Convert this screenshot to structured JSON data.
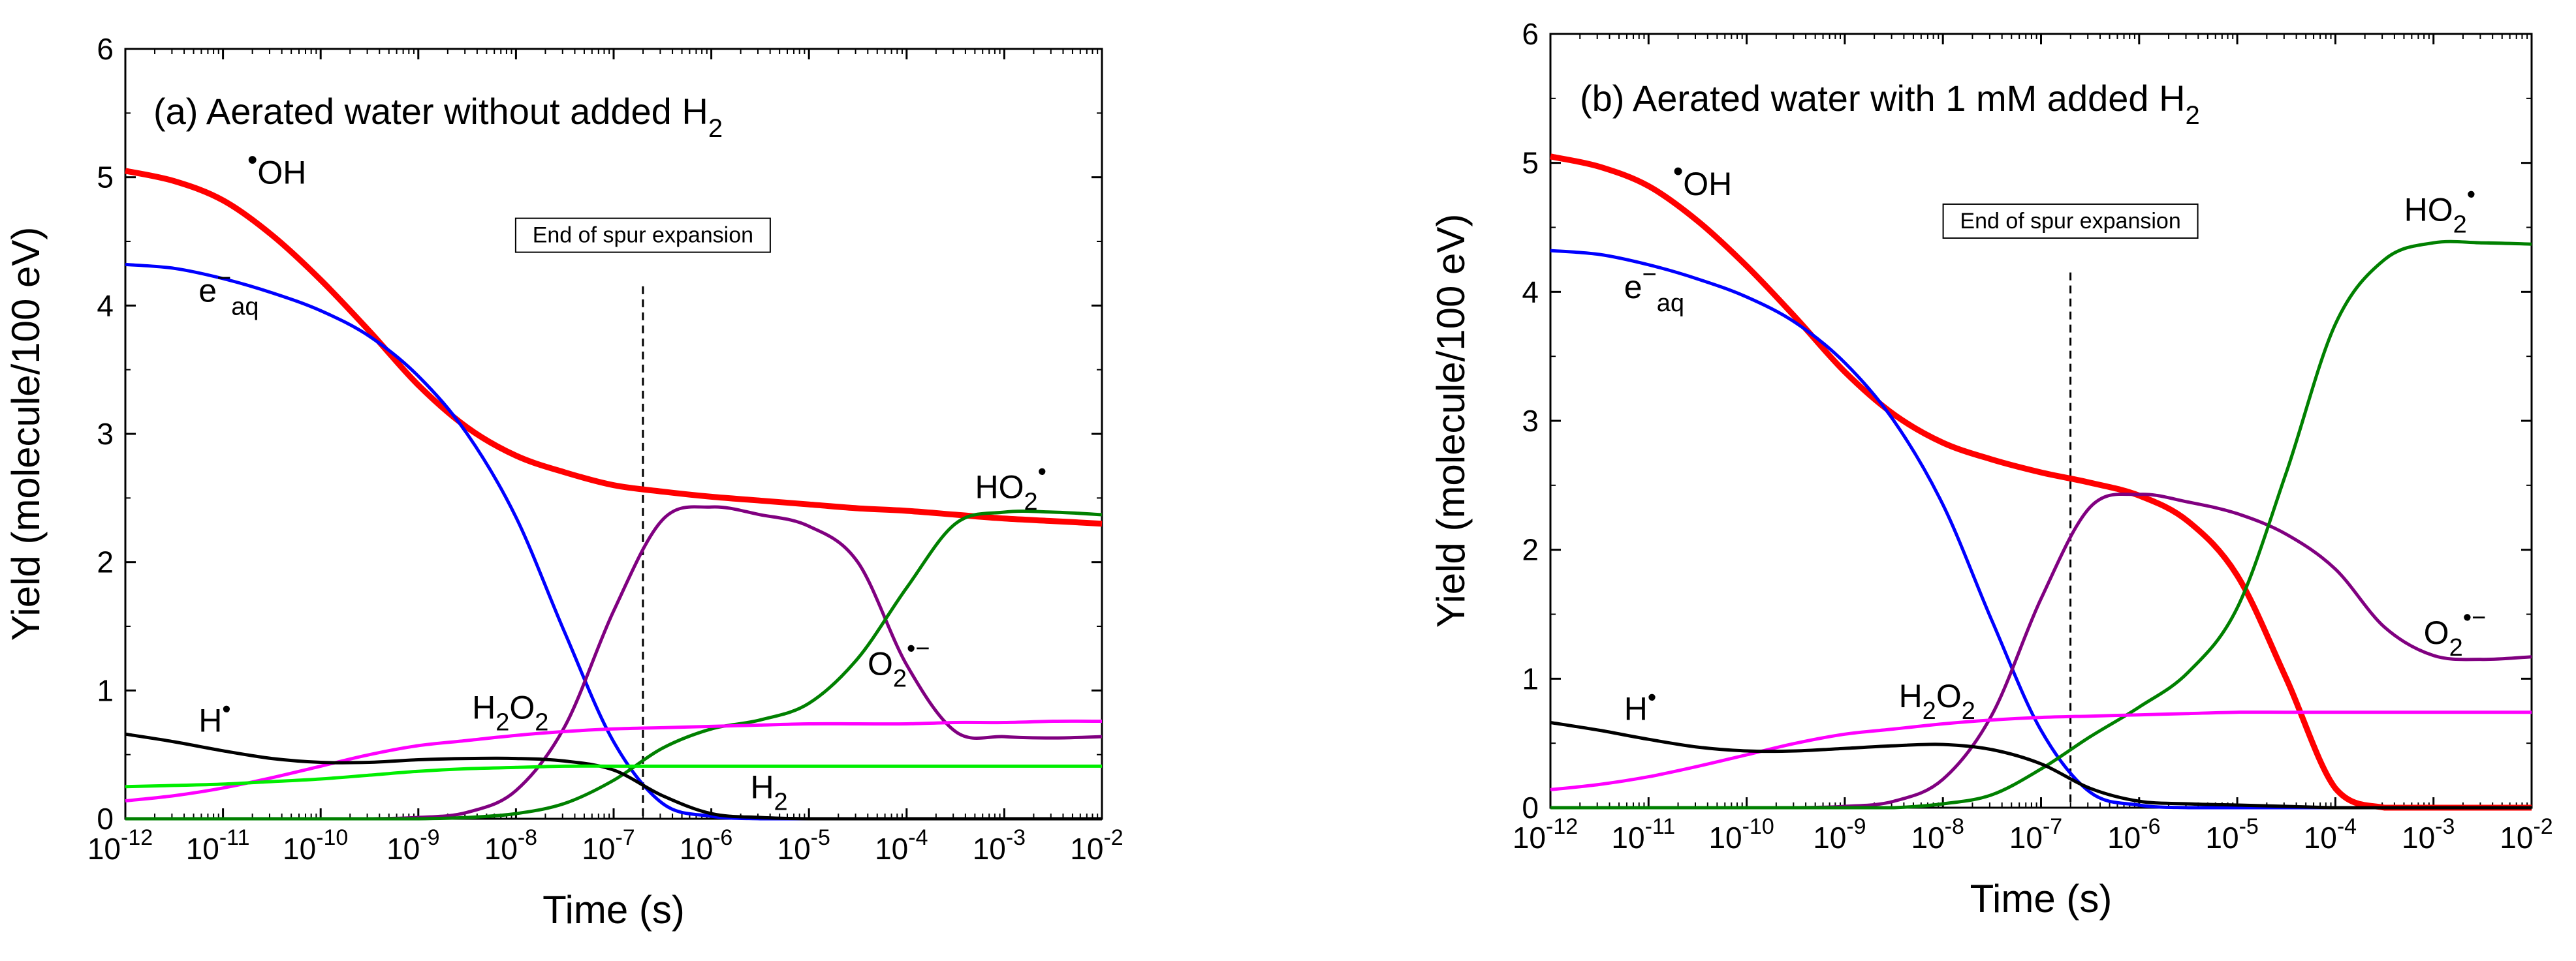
{
  "chart_data": [
    {
      "type": "line",
      "panel_label": "(a)",
      "title": "Aerated water without added H",
      "title_sub": "2",
      "xlabel": "Time (s)",
      "ylabel": "Yield (molecule/100 eV)",
      "xscale": "log",
      "xlim_log10": [
        -12,
        -2
      ],
      "ylim": [
        0,
        6
      ],
      "x_tick_labels": [
        "10",
        "10",
        "10",
        "10",
        "10",
        "10",
        "10",
        "10",
        "10",
        "10",
        "10"
      ],
      "x_tick_exponents": [
        "-12",
        "-11",
        "-10",
        "-9",
        "-8",
        "-7",
        "-6",
        "-5",
        "-4",
        "-3",
        "-2"
      ],
      "y_tick_labels": [
        "0",
        "1",
        "2",
        "3",
        "4",
        "5",
        "6"
      ],
      "annotation": {
        "text": "End of spur expansion",
        "x_log10": -6.7
      },
      "grid": false,
      "x_log10": [
        -12,
        -11.5,
        -11,
        -10.5,
        -10,
        -9.5,
        -9,
        -8.5,
        -8,
        -7.5,
        -7,
        -6.5,
        -6,
        -5.5,
        -5,
        -4.5,
        -4,
        -3.5,
        -3,
        -2.5,
        -2
      ],
      "series": [
        {
          "key": "OH",
          "color": "#ff0000",
          "label_pre": "•",
          "label_main": "OH",
          "label_x_log10": -10.75,
          "label_y": 4.95,
          "values": [
            5.05,
            4.97,
            4.82,
            4.55,
            4.2,
            3.8,
            3.38,
            3.05,
            2.83,
            2.7,
            2.6,
            2.55,
            2.51,
            2.48,
            2.45,
            2.42,
            2.4,
            2.37,
            2.34,
            2.32,
            2.3
          ]
        },
        {
          "key": "eaq",
          "color": "#0000ff",
          "label_main": "e",
          "label_sup": "−",
          "label_sub": "aq",
          "label_x_log10": -11.25,
          "label_y": 4.03,
          "values": [
            4.32,
            4.29,
            4.21,
            4.1,
            3.96,
            3.76,
            3.45,
            3.0,
            2.35,
            1.45,
            0.6,
            0.12,
            0.02,
            0,
            0,
            0,
            0,
            0,
            0,
            0,
            0
          ]
        },
        {
          "key": "O2",
          "color": "#800080",
          "label_main": "O",
          "label_sub": "2",
          "label_sup": "•−",
          "label_x_log10": -4.4,
          "label_y": 1.12,
          "values": [
            0,
            0,
            0,
            0,
            0,
            0,
            0.01,
            0.05,
            0.22,
            0.72,
            1.62,
            2.33,
            2.43,
            2.37,
            2.28,
            2.0,
            1.2,
            0.68,
            0.64,
            0.63,
            0.64
          ]
        },
        {
          "key": "HO2",
          "color": "#008000",
          "label_main": "HO",
          "label_sub": "2",
          "label_sup": "•",
          "label_x_log10": -3.3,
          "label_y": 2.5,
          "values": [
            0,
            0,
            0,
            0,
            0,
            0,
            0,
            0.01,
            0.04,
            0.12,
            0.3,
            0.55,
            0.7,
            0.77,
            0.9,
            1.25,
            1.8,
            2.3,
            2.39,
            2.39,
            2.37
          ]
        },
        {
          "key": "H2O2",
          "color": "#ff00ff",
          "label_main": "H",
          "label_sub": "2",
          "label_main2": "O",
          "label_sub2": "2",
          "label_x_log10": -8.45,
          "label_y": 0.78,
          "values": [
            0.14,
            0.18,
            0.24,
            0.32,
            0.41,
            0.5,
            0.57,
            0.61,
            0.65,
            0.68,
            0.7,
            0.71,
            0.72,
            0.73,
            0.74,
            0.74,
            0.74,
            0.75,
            0.75,
            0.76,
            0.76
          ]
        },
        {
          "key": "H",
          "color": "#000000",
          "label_main": "H",
          "label_sup": "•",
          "label_x_log10": -11.25,
          "label_y": 0.68,
          "values": [
            0.66,
            0.6,
            0.53,
            0.47,
            0.44,
            0.44,
            0.46,
            0.47,
            0.47,
            0.45,
            0.38,
            0.18,
            0.04,
            0.01,
            0,
            0,
            0,
            0,
            0,
            0,
            0
          ]
        },
        {
          "key": "H2",
          "color": "#00ee00",
          "label_main": "H",
          "label_sub": "2",
          "label_x_log10": -5.6,
          "label_y": 0.16,
          "values": [
            0.25,
            0.26,
            0.27,
            0.29,
            0.31,
            0.34,
            0.37,
            0.39,
            0.4,
            0.41,
            0.41,
            0.41,
            0.41,
            0.41,
            0.41,
            0.41,
            0.41,
            0.41,
            0.41,
            0.41,
            0.41
          ]
        }
      ]
    },
    {
      "type": "line",
      "panel_label": "(b)",
      "title": "Aerated water with 1 mM added H",
      "title_sub": "2",
      "xlabel": "Time (s)",
      "ylabel": "Yield (molecule/100 eV)",
      "xscale": "log",
      "xlim_log10": [
        -12,
        -2
      ],
      "ylim": [
        0,
        6
      ],
      "x_tick_labels": [
        "10",
        "10",
        "10",
        "10",
        "10",
        "10",
        "10",
        "10",
        "10",
        "10",
        "10"
      ],
      "x_tick_exponents": [
        "-12",
        "-11",
        "-10",
        "-9",
        "-8",
        "-7",
        "-6",
        "-5",
        "-4",
        "-3",
        "-2"
      ],
      "y_tick_labels": [
        "0",
        "1",
        "2",
        "3",
        "4",
        "5",
        "6"
      ],
      "annotation": {
        "text": "End of spur expansion",
        "x_log10": -6.7
      },
      "grid": false,
      "x_log10": [
        -12,
        -11.5,
        -11,
        -10.5,
        -10,
        -9.5,
        -9,
        -8.5,
        -8,
        -7.5,
        -7,
        -6.5,
        -6,
        -5.5,
        -5,
        -4.5,
        -4,
        -3.5,
        -3,
        -2.5,
        -2
      ],
      "series": [
        {
          "key": "OH",
          "color": "#ff0000",
          "label_pre": "•",
          "label_main": "OH",
          "label_x_log10": -10.75,
          "label_y": 4.75,
          "values": [
            5.05,
            4.97,
            4.82,
            4.55,
            4.2,
            3.8,
            3.38,
            3.05,
            2.83,
            2.7,
            2.6,
            2.52,
            2.42,
            2.22,
            1.8,
            1.0,
            0.15,
            0,
            0,
            0,
            0
          ]
        },
        {
          "key": "eaq",
          "color": "#0000ff",
          "label_main": "e",
          "label_sup": "−",
          "label_sub": "aq",
          "label_x_log10": -11.25,
          "label_y": 3.95,
          "values": [
            4.32,
            4.29,
            4.21,
            4.1,
            3.96,
            3.76,
            3.45,
            3.0,
            2.35,
            1.45,
            0.6,
            0.12,
            0.02,
            0,
            0,
            0,
            0,
            0,
            0,
            0,
            0
          ]
        },
        {
          "key": "O2",
          "color": "#800080",
          "label_main": "O",
          "label_sub": "2",
          "label_sup": "•−",
          "label_x_log10": -3.1,
          "label_y": 1.27,
          "values": [
            0,
            0,
            0,
            0,
            0,
            0,
            0.01,
            0.05,
            0.22,
            0.72,
            1.62,
            2.33,
            2.43,
            2.37,
            2.28,
            2.12,
            1.85,
            1.4,
            1.18,
            1.15,
            1.17
          ]
        },
        {
          "key": "HO2",
          "color": "#008000",
          "label_main": "HO",
          "label_sub": "2",
          "label_sup": "•",
          "label_x_log10": -3.3,
          "label_y": 4.55,
          "values": [
            0,
            0,
            0,
            0,
            0,
            0,
            0,
            0,
            0.03,
            0.1,
            0.3,
            0.55,
            0.78,
            1.05,
            1.55,
            2.6,
            3.75,
            4.25,
            4.38,
            4.38,
            4.37
          ]
        },
        {
          "key": "H2O2",
          "color": "#ff00ff",
          "label_main": "H",
          "label_sub": "2",
          "label_main2": "O",
          "label_sub2": "2",
          "label_x_log10": -8.45,
          "label_y": 0.78,
          "values": [
            0.14,
            0.18,
            0.24,
            0.32,
            0.41,
            0.5,
            0.57,
            0.61,
            0.65,
            0.68,
            0.7,
            0.71,
            0.72,
            0.73,
            0.74,
            0.74,
            0.74,
            0.74,
            0.74,
            0.74,
            0.74
          ]
        },
        {
          "key": "H",
          "color": "#000000",
          "label_main": "H",
          "label_sup": "•",
          "label_x_log10": -11.25,
          "label_y": 0.68,
          "values": [
            0.66,
            0.6,
            0.53,
            0.47,
            0.44,
            0.44,
            0.46,
            0.48,
            0.49,
            0.45,
            0.34,
            0.15,
            0.05,
            0.03,
            0.02,
            0.01,
            0,
            0,
            0,
            0,
            0
          ]
        }
      ]
    }
  ]
}
